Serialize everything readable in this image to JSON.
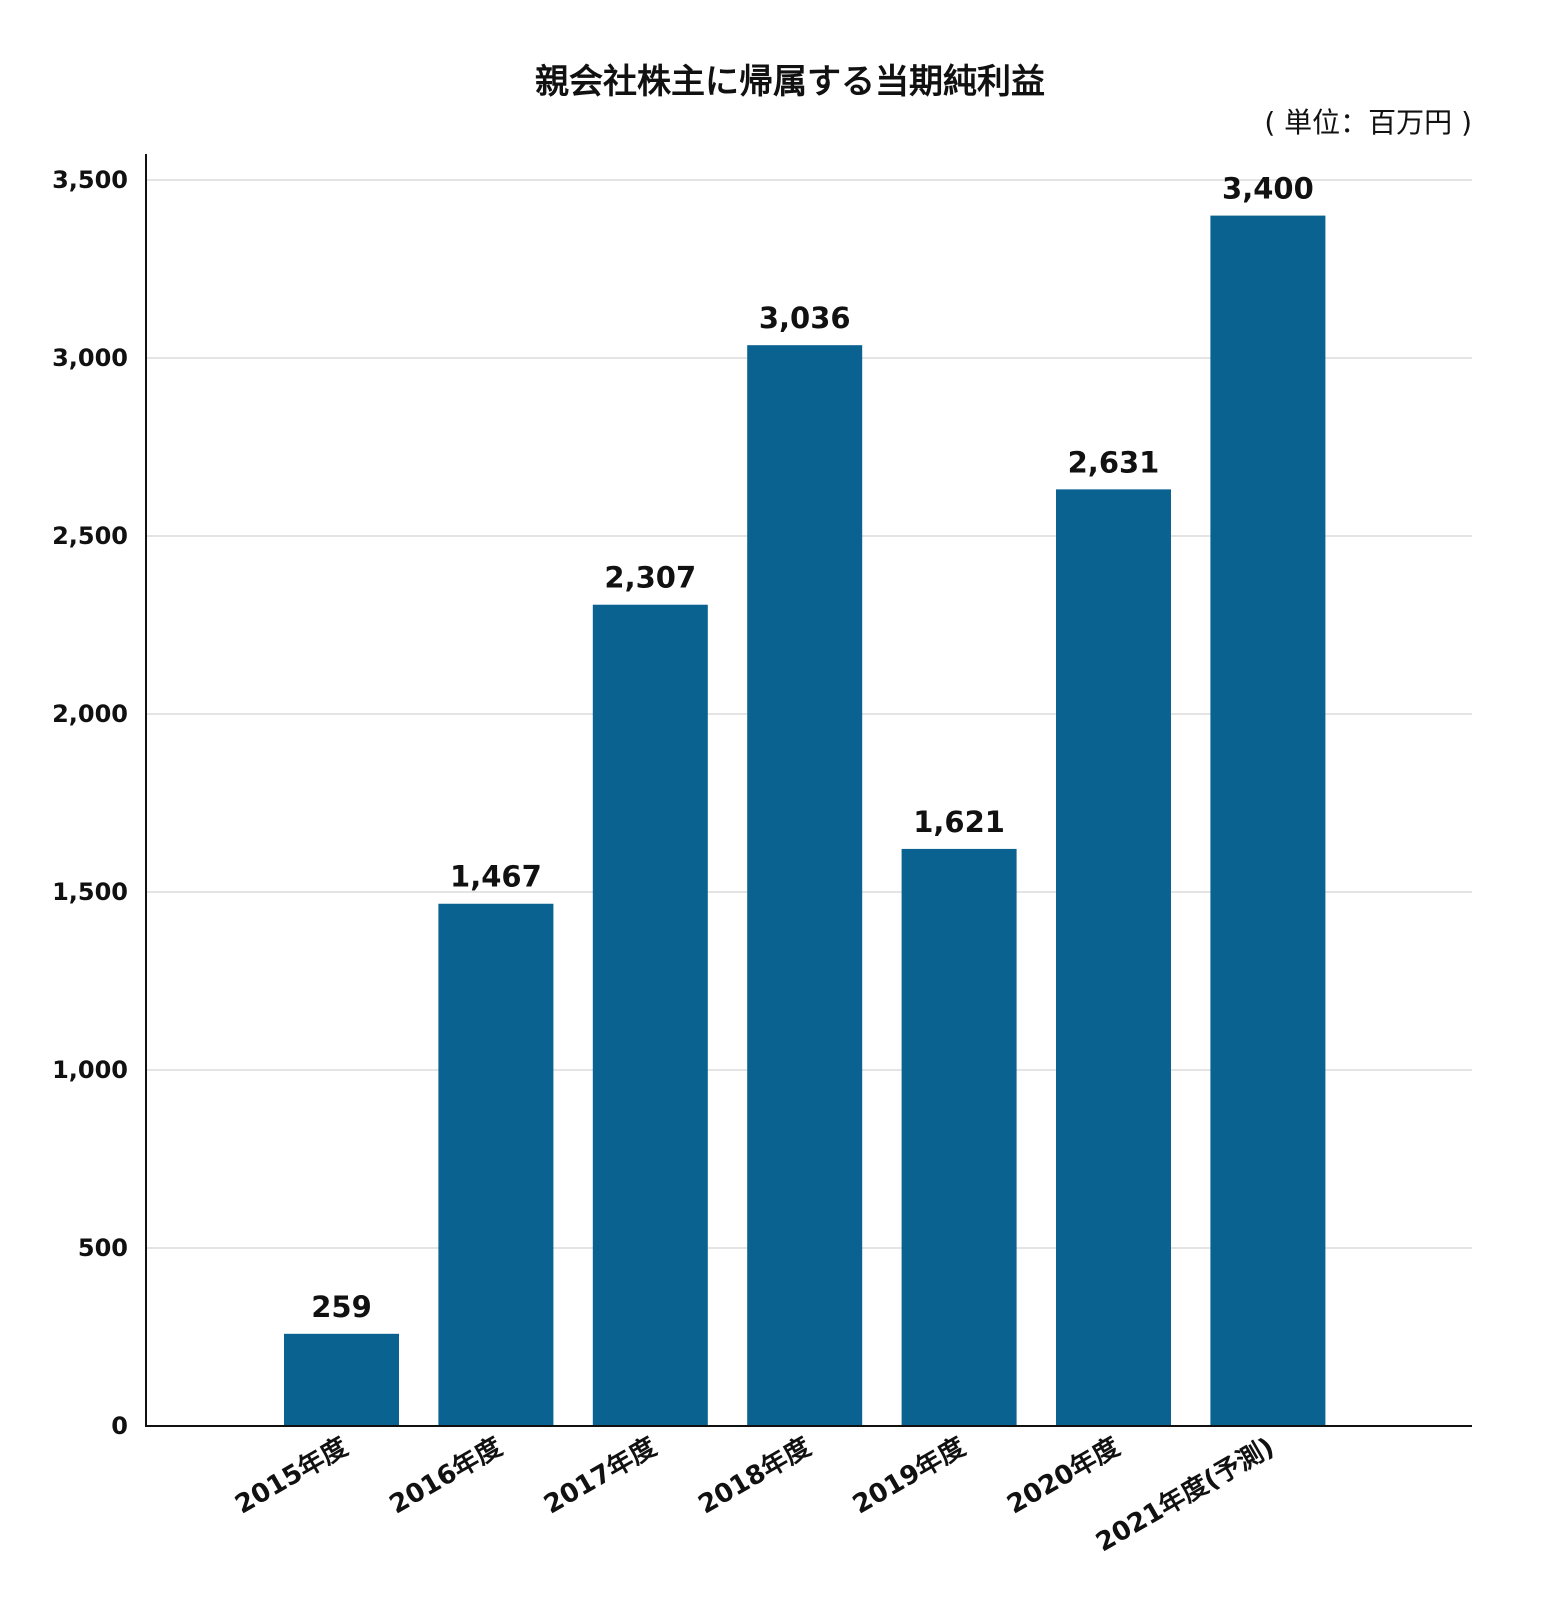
{
  "chart_data": {
    "type": "bar",
    "title": "親会社株主に帰属する当期純利益",
    "unit_label": "( 単位：百万円 )",
    "categories": [
      "2015年度",
      "2016年度",
      "2017年度",
      "2018年度",
      "2019年度",
      "2020年度",
      "2021年度(予測)"
    ],
    "values": [
      259,
      1467,
      2307,
      3036,
      1621,
      2631,
      3400
    ],
    "value_labels": [
      "259",
      "1,467",
      "2,307",
      "3,036",
      "1,621",
      "2,631",
      "3,400"
    ],
    "ylim": [
      0,
      3500
    ],
    "yticks": [
      0,
      500,
      1000,
      1500,
      2000,
      2500,
      3000,
      3500
    ],
    "ytick_labels": [
      "0",
      "500",
      "1,000",
      "1,500",
      "2,000",
      "2,500",
      "3,000",
      "3,500"
    ],
    "xlabel": "",
    "ylabel": "",
    "grid": true,
    "bar_color": "#0a6291"
  }
}
